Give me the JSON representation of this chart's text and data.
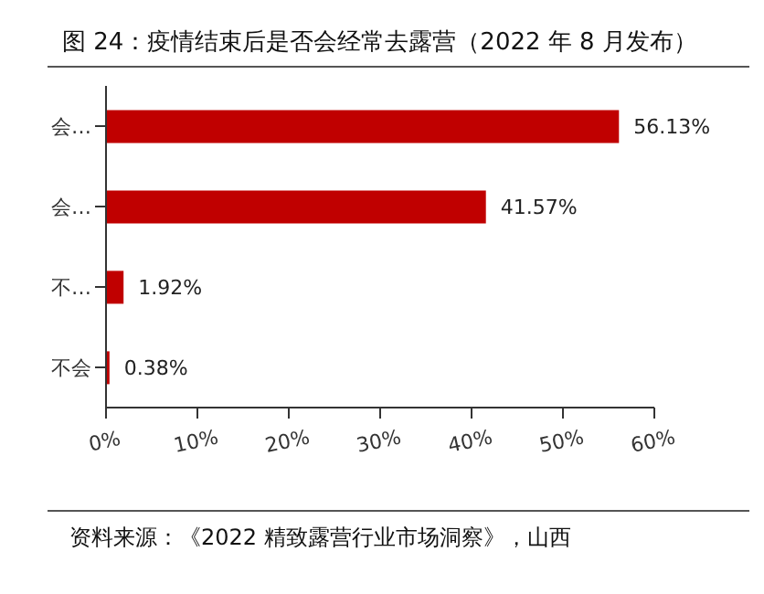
{
  "chart_data": {
    "type": "bar",
    "orientation": "horizontal",
    "title": "图 24：疫情结束后是否会经常去露营（2022 年 8 月发布）",
    "categories": [
      "会…",
      "会…",
      "不…",
      "不会"
    ],
    "values": [
      56.13,
      41.57,
      1.92,
      0.38
    ],
    "value_labels": [
      "56.13%",
      "41.57%",
      "1.92%",
      "0.38%"
    ],
    "color": "#c00000",
    "xlim": [
      0,
      60
    ],
    "xticks": [
      {
        "value": 0,
        "label": "0%"
      },
      {
        "value": 10,
        "label": "10%"
      },
      {
        "value": 20,
        "label": "20%"
      },
      {
        "value": 30,
        "label": "30%"
      },
      {
        "value": 40,
        "label": "40%"
      },
      {
        "value": 50,
        "label": "50%"
      },
      {
        "value": 60,
        "label": "60%"
      }
    ],
    "grid": false,
    "legend": false,
    "annotations": [
      "资料来源：《2022 精致露营行业市场洞察》，山西"
    ]
  }
}
